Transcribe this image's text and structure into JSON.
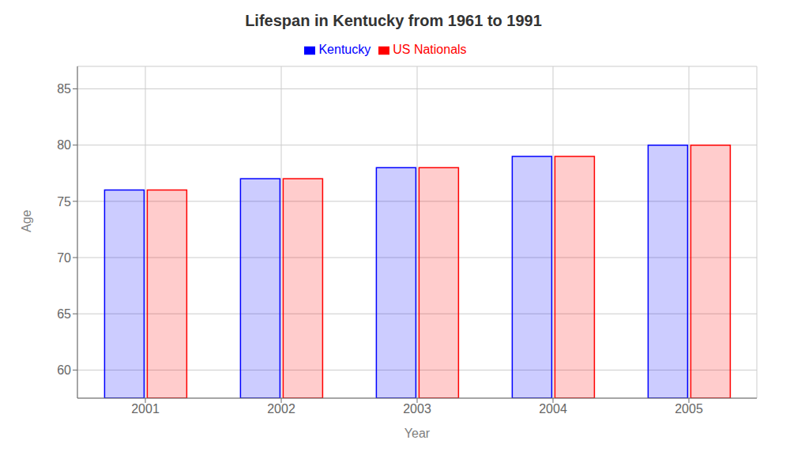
{
  "chart_data": {
    "type": "bar",
    "title": "Lifespan in Kentucky from 1961 to 1991",
    "xlabel": "Year",
    "ylabel": "Age",
    "categories": [
      "2001",
      "2002",
      "2003",
      "2004",
      "2005"
    ],
    "series": [
      {
        "name": "Kentucky",
        "color": "#0000ff",
        "values": [
          76,
          77,
          78,
          79,
          80
        ]
      },
      {
        "name": "US Nationals",
        "color": "#ff0000",
        "values": [
          76,
          77,
          78,
          79,
          80
        ]
      }
    ],
    "ylim": [
      57.5,
      87
    ],
    "yticks": [
      60,
      65,
      70,
      75,
      80,
      85
    ],
    "grid": true,
    "legend": "top"
  }
}
